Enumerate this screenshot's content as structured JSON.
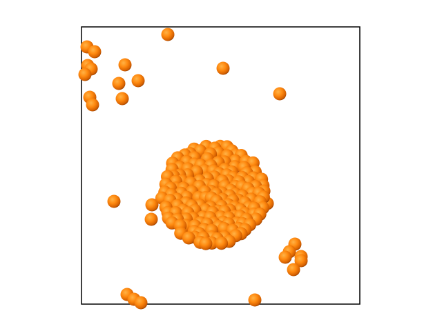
{
  "scene": {
    "background": "#ffffff",
    "frame_color": "#000000",
    "sphere_highlight": "#ffb347",
    "sphere_base": "#ff7f0e",
    "sphere_shadow": "#8a3a00"
  }
}
